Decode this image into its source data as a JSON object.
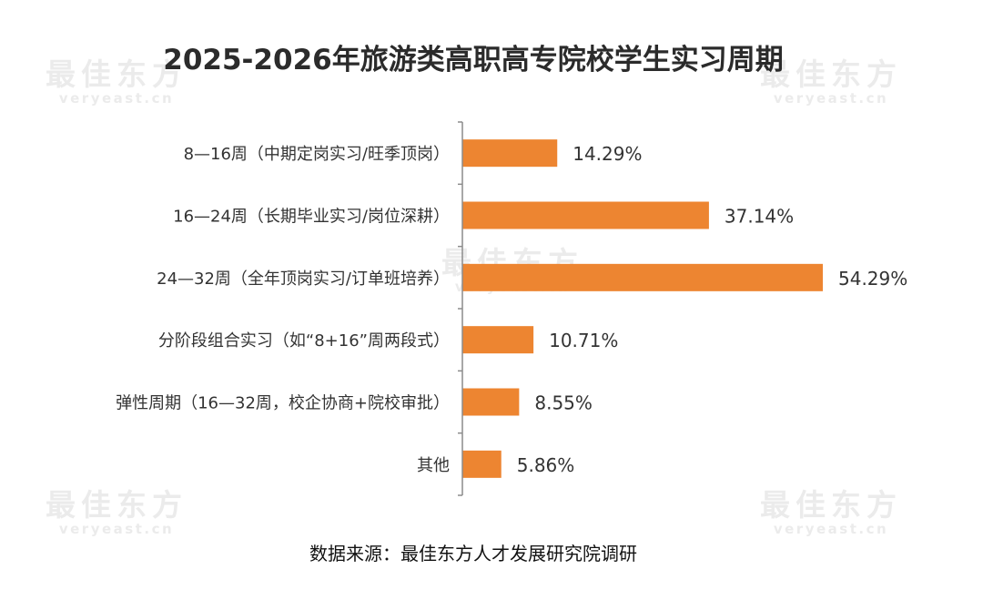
{
  "title": "2025-2026年旅游类高职高专院校学生实习周期",
  "source": "数据来源：最佳东方人才发展研究院调研",
  "watermark": {
    "logo": "最佳东方",
    "url": "veryeast.cn"
  },
  "colors": {
    "bar": "#ED8531",
    "axis": "#8c8c8c",
    "text": "#333333"
  },
  "chart_data": {
    "type": "bar",
    "orientation": "horizontal",
    "categories": [
      "8—16周（中期定岗实习/旺季顶岗）",
      "16—24周（长期毕业实习/岗位深耕）",
      "24—32周（全年顶岗实习/订单班培养）",
      "分阶段组合实习（如“8+16”周两段式）",
      "弹性周期（16—32周，校企协商+院校审批）",
      "其他"
    ],
    "values": [
      14.29,
      37.14,
      54.29,
      10.71,
      8.55,
      5.86
    ],
    "data_labels": [
      "14.29%",
      "37.14%",
      "54.29%",
      "10.71%",
      "8.55%",
      "5.86%"
    ],
    "unit": "%",
    "xlim": [
      0,
      55
    ]
  }
}
